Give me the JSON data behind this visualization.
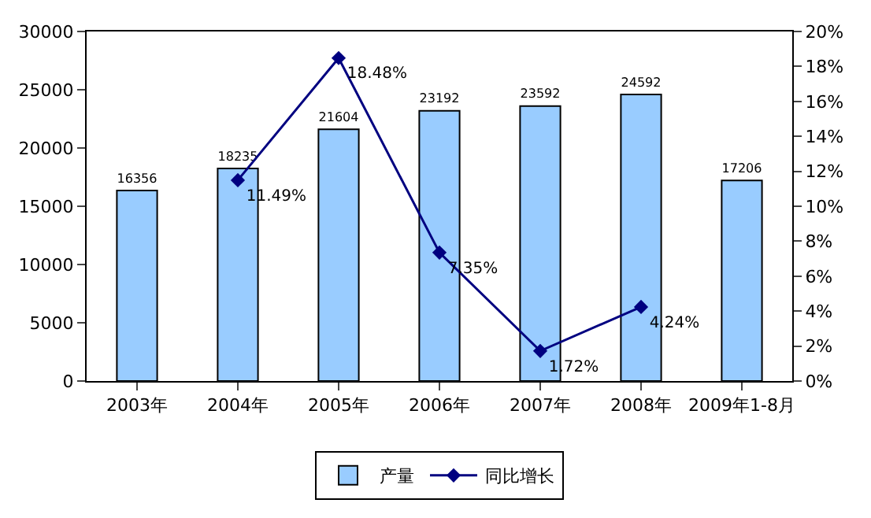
{
  "chart_data": {
    "type": "bar",
    "categories": [
      "2003年",
      "2004年",
      "2005年",
      "2006年",
      "2007年",
      "2008年",
      "2009年1-8月"
    ],
    "series": [
      {
        "name": "产量",
        "color": "#99ccff",
        "values": [
          16356,
          18235,
          21604,
          23192,
          23592,
          24592,
          17206
        ],
        "value_labels": [
          "16356",
          "18235",
          "21604",
          "23192",
          "23592",
          "24592",
          "17206"
        ]
      },
      {
        "name": "同比增长",
        "type": "line",
        "axis": "y2",
        "color": "#000080",
        "values": [
          null,
          11.49,
          18.48,
          7.35,
          1.72,
          4.24,
          null
        ],
        "value_labels": [
          null,
          "11.49%",
          "18.48%",
          "7.35%",
          "1.72%",
          "4.24%",
          null
        ]
      }
    ],
    "ylim": [
      0,
      30000
    ],
    "yticks": [
      0,
      5000,
      10000,
      15000,
      20000,
      25000,
      30000
    ],
    "y2lim": [
      0,
      20
    ],
    "y2ticks": [
      {
        "value": 0,
        "label": "0%"
      },
      {
        "value": 2,
        "label": "2%"
      },
      {
        "value": 4,
        "label": "4%"
      },
      {
        "value": 6,
        "label": "6%"
      },
      {
        "value": 8,
        "label": "8%"
      },
      {
        "value": 10,
        "label": "10%"
      },
      {
        "value": 12,
        "label": "12%"
      },
      {
        "value": 14,
        "label": "14%"
      },
      {
        "value": 16,
        "label": "16%"
      },
      {
        "value": 18,
        "label": "18%"
      },
      {
        "value": 20,
        "label": "20%"
      }
    ],
    "marker": "diamond",
    "line_style": "solid",
    "legend": "bottom"
  }
}
